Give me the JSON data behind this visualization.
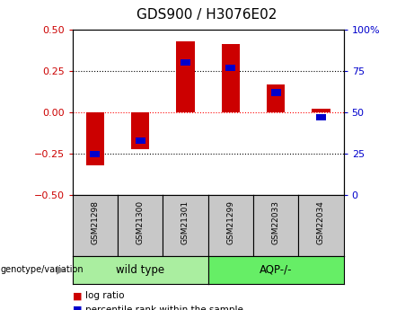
{
  "title": "GDS900 / H3076E02",
  "samples": [
    "GSM21298",
    "GSM21300",
    "GSM21301",
    "GSM21299",
    "GSM22033",
    "GSM22034"
  ],
  "log_ratio": [
    -0.32,
    -0.22,
    0.43,
    0.41,
    0.17,
    0.02
  ],
  "percentile_rank": [
    25,
    33,
    80,
    77,
    62,
    47
  ],
  "groups": [
    {
      "label": "wild type",
      "color": "#90EE90"
    },
    {
      "label": "AQP-/-",
      "color": "#66DD66"
    }
  ],
  "bar_color_red": "#CC0000",
  "bar_color_blue": "#0000CC",
  "left_ylim": [
    -0.5,
    0.5
  ],
  "right_ylim": [
    0,
    100
  ],
  "left_yticks": [
    -0.5,
    -0.25,
    0,
    0.25,
    0.5
  ],
  "right_yticks": [
    0,
    25,
    50,
    75,
    100
  ],
  "hline_positions": [
    -0.25,
    0,
    0.25
  ],
  "hline_styles": [
    "dotted",
    "dotted",
    "dotted"
  ],
  "hline_colors": [
    "black",
    "red",
    "black"
  ],
  "group_label": "genotype/variation",
  "legend_items": [
    {
      "label": "log ratio",
      "color": "#CC0000"
    },
    {
      "label": "percentile rank within the sample",
      "color": "#0000CC"
    }
  ],
  "bar_width": 0.4,
  "tick_label_color_left": "#CC0000",
  "tick_label_color_right": "#0000CC",
  "background_color": "#ffffff",
  "sample_box_color": "#C8C8C8",
  "wt_color": "#AAEEA0",
  "aqp_color": "#66EE66"
}
